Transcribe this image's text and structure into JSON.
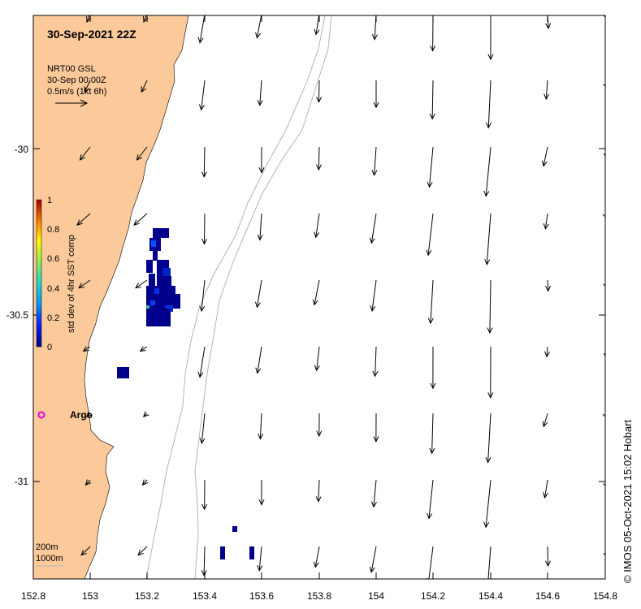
{
  "title": "30-Sep-2021 22Z",
  "current_product": {
    "line1": "NRT00 GSL",
    "line2": "30-Sep 00:00Z",
    "line3": "0.5m/s (1kt 6h)"
  },
  "colorbar": {
    "label": "std dev of 4hr SST comp",
    "ticks": [
      "0",
      "0.2",
      "0.4",
      "0.6",
      "0.8",
      "1"
    ]
  },
  "x_ticks": [
    "152.8",
    "153",
    "153.2",
    "153.4",
    "153.6",
    "153.8",
    "154",
    "154.2",
    "154.4",
    "154.6",
    "154.8"
  ],
  "y_ticks": [
    "-30",
    "-30.5",
    "-31"
  ],
  "argo_label": "Argo",
  "isobaths": {
    "line1": "200m",
    "line2": "1000m"
  },
  "credit": "© IMOS 05-Oct-2021 15:02 Hobart",
  "colors": {
    "land": "#fcc99a",
    "isobath": "#b4b4b4",
    "sst_low": "#00008c",
    "argo": "#e600e6"
  },
  "map_extent": {
    "lon": [
      152.8,
      154.8
    ],
    "lat": [
      -31.3,
      -29.6
    ]
  }
}
